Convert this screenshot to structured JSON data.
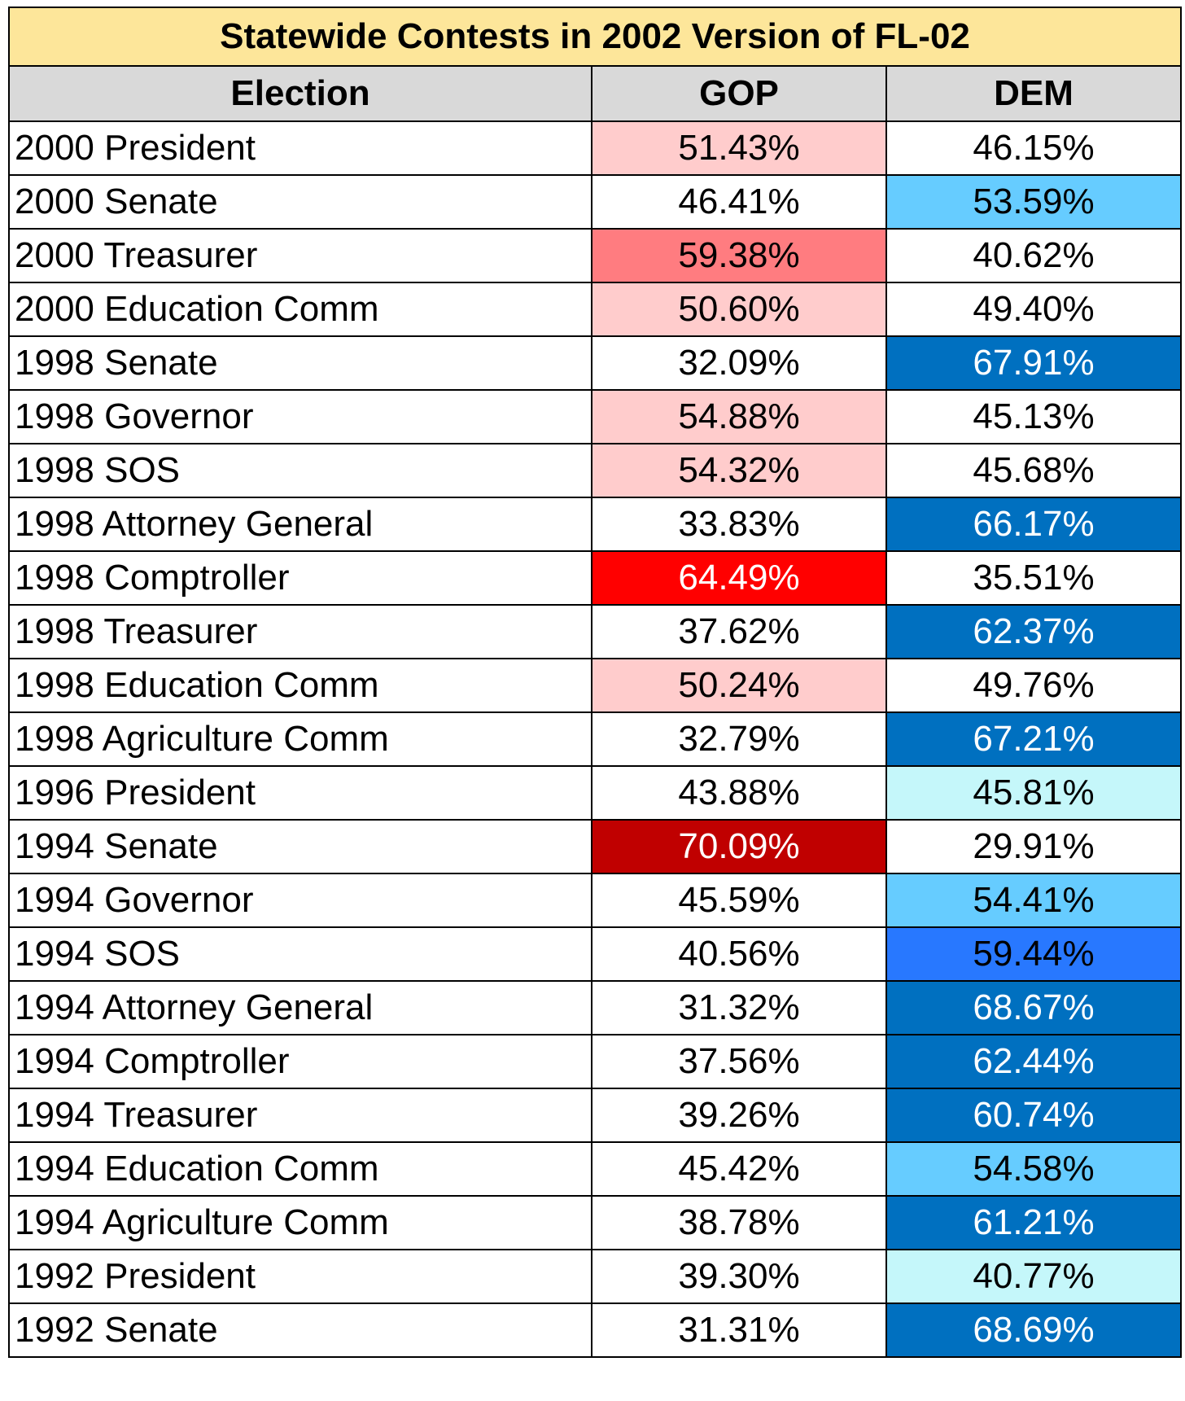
{
  "chart_data": {
    "type": "table",
    "title": "Statewide Contests in 2002 Version of FL-02",
    "columns": [
      "Election",
      "GOP",
      "DEM"
    ],
    "rows": [
      {
        "election": "2000 President",
        "gop": "51.43%",
        "dem": "46.15%",
        "gop_bg": "#ffcccc",
        "gop_fg": "#000000",
        "dem_bg": "#ffffff",
        "dem_fg": "#000000"
      },
      {
        "election": "2000 Senate",
        "gop": "46.41%",
        "dem": "53.59%",
        "gop_bg": "#ffffff",
        "gop_fg": "#000000",
        "dem_bg": "#66ccff",
        "dem_fg": "#000000"
      },
      {
        "election": "2000 Treasurer",
        "gop": "59.38%",
        "dem": "40.62%",
        "gop_bg": "#ff7c80",
        "gop_fg": "#000000",
        "dem_bg": "#ffffff",
        "dem_fg": "#000000"
      },
      {
        "election": "2000 Education Comm",
        "gop": "50.60%",
        "dem": "49.40%",
        "gop_bg": "#ffcccc",
        "gop_fg": "#000000",
        "dem_bg": "#ffffff",
        "dem_fg": "#000000"
      },
      {
        "election": "1998 Senate",
        "gop": "32.09%",
        "dem": "67.91%",
        "gop_bg": "#ffffff",
        "gop_fg": "#000000",
        "dem_bg": "#0070c0",
        "dem_fg": "#ffffff"
      },
      {
        "election": "1998 Governor",
        "gop": "54.88%",
        "dem": "45.13%",
        "gop_bg": "#ffcccc",
        "gop_fg": "#000000",
        "dem_bg": "#ffffff",
        "dem_fg": "#000000"
      },
      {
        "election": "1998 SOS",
        "gop": "54.32%",
        "dem": "45.68%",
        "gop_bg": "#ffcccc",
        "gop_fg": "#000000",
        "dem_bg": "#ffffff",
        "dem_fg": "#000000"
      },
      {
        "election": "1998 Attorney General",
        "gop": "33.83%",
        "dem": "66.17%",
        "gop_bg": "#ffffff",
        "gop_fg": "#000000",
        "dem_bg": "#0070c0",
        "dem_fg": "#ffffff"
      },
      {
        "election": "1998 Comptroller",
        "gop": "64.49%",
        "dem": "35.51%",
        "gop_bg": "#ff0000",
        "gop_fg": "#ffffff",
        "dem_bg": "#ffffff",
        "dem_fg": "#000000"
      },
      {
        "election": "1998 Treasurer",
        "gop": "37.62%",
        "dem": "62.37%",
        "gop_bg": "#ffffff",
        "gop_fg": "#000000",
        "dem_bg": "#0070c0",
        "dem_fg": "#ffffff"
      },
      {
        "election": "1998 Education Comm",
        "gop": "50.24%",
        "dem": "49.76%",
        "gop_bg": "#ffcccc",
        "gop_fg": "#000000",
        "dem_bg": "#ffffff",
        "dem_fg": "#000000"
      },
      {
        "election": "1998 Agriculture Comm",
        "gop": "32.79%",
        "dem": "67.21%",
        "gop_bg": "#ffffff",
        "gop_fg": "#000000",
        "dem_bg": "#0070c0",
        "dem_fg": "#ffffff"
      },
      {
        "election": "1996 President",
        "gop": "43.88%",
        "dem": "45.81%",
        "gop_bg": "#ffffff",
        "gop_fg": "#000000",
        "dem_bg": "#c5f7fa",
        "dem_fg": "#000000"
      },
      {
        "election": "1994 Senate",
        "gop": "70.09%",
        "dem": "29.91%",
        "gop_bg": "#c00000",
        "gop_fg": "#ffffff",
        "dem_bg": "#ffffff",
        "dem_fg": "#000000"
      },
      {
        "election": "1994 Governor",
        "gop": "45.59%",
        "dem": "54.41%",
        "gop_bg": "#ffffff",
        "gop_fg": "#000000",
        "dem_bg": "#66ccff",
        "dem_fg": "#000000"
      },
      {
        "election": "1994 SOS",
        "gop": "40.56%",
        "dem": "59.44%",
        "gop_bg": "#ffffff",
        "gop_fg": "#000000",
        "dem_bg": "#2878ff",
        "dem_fg": "#000000"
      },
      {
        "election": "1994 Attorney General",
        "gop": "31.32%",
        "dem": "68.67%",
        "gop_bg": "#ffffff",
        "gop_fg": "#000000",
        "dem_bg": "#0070c0",
        "dem_fg": "#ffffff"
      },
      {
        "election": "1994 Comptroller",
        "gop": "37.56%",
        "dem": "62.44%",
        "gop_bg": "#ffffff",
        "gop_fg": "#000000",
        "dem_bg": "#0070c0",
        "dem_fg": "#ffffff"
      },
      {
        "election": "1994 Treasurer",
        "gop": "39.26%",
        "dem": "60.74%",
        "gop_bg": "#ffffff",
        "gop_fg": "#000000",
        "dem_bg": "#0070c0",
        "dem_fg": "#ffffff"
      },
      {
        "election": "1994 Education Comm",
        "gop": "45.42%",
        "dem": "54.58%",
        "gop_bg": "#ffffff",
        "gop_fg": "#000000",
        "dem_bg": "#66ccff",
        "dem_fg": "#000000"
      },
      {
        "election": "1994 Agriculture Comm",
        "gop": "38.78%",
        "dem": "61.21%",
        "gop_bg": "#ffffff",
        "gop_fg": "#000000",
        "dem_bg": "#0070c0",
        "dem_fg": "#ffffff"
      },
      {
        "election": "1992 President",
        "gop": "39.30%",
        "dem": "40.77%",
        "gop_bg": "#ffffff",
        "gop_fg": "#000000",
        "dem_bg": "#c5f7fa",
        "dem_fg": "#000000"
      },
      {
        "election": "1992 Senate",
        "gop": "31.31%",
        "dem": "68.69%",
        "gop_bg": "#ffffff",
        "gop_fg": "#000000",
        "dem_bg": "#0070c0",
        "dem_fg": "#ffffff"
      }
    ]
  },
  "colors": {
    "title_bg": "#fde69a",
    "header_bg": "#d9d9d9",
    "border": "#000000"
  }
}
